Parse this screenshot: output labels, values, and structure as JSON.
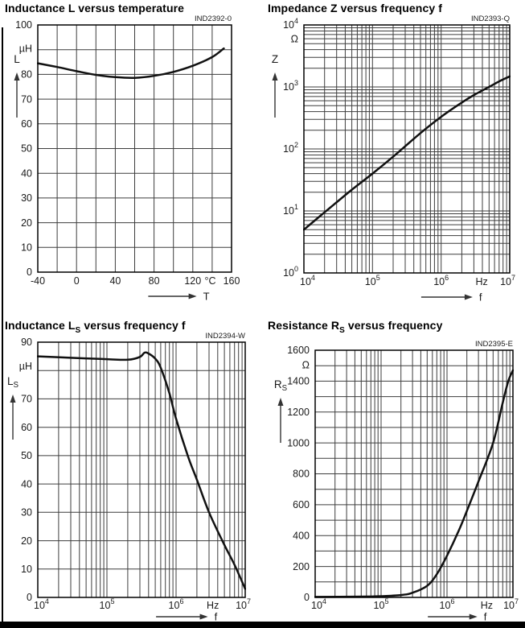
{
  "page": {
    "background": "#ffffff",
    "rule_color": "#000000"
  },
  "colors": {
    "grid": "#3d3d3d",
    "border": "#000000",
    "curve": "#111111",
    "arrow": "#333333",
    "text": "#1a1a1a"
  },
  "chart_data": [
    {
      "key": "l_vs_t",
      "type": "line",
      "title_parts": [
        {
          "text": "Inductance L versus temperature"
        }
      ],
      "plot_id": "IND2392-0",
      "x_axis": {
        "scale": "linear",
        "min": -40,
        "max": 160,
        "grid_step": 20,
        "arrow_label": "T",
        "ticks": [
          {
            "value": -40,
            "parts": [
              {
                "text": "-40"
              }
            ]
          },
          {
            "value": 0,
            "parts": [
              {
                "text": "0"
              }
            ]
          },
          {
            "value": 40,
            "parts": [
              {
                "text": "40"
              }
            ]
          },
          {
            "value": 80,
            "parts": [
              {
                "text": "80"
              }
            ]
          },
          {
            "value": 120,
            "parts": [
              {
                "text": "120"
              }
            ]
          },
          {
            "value": 138,
            "parts": [
              {
                "text": "°C"
              }
            ]
          },
          {
            "value": 160,
            "parts": [
              {
                "text": "160"
              }
            ]
          }
        ]
      },
      "y_axis": {
        "scale": "linear",
        "min": 0,
        "max": 100,
        "grid_step": 10,
        "quantity_parts": [
          {
            "text": "L"
          }
        ],
        "ticks": [
          {
            "value": 100,
            "parts": [
              {
                "text": "100"
              }
            ]
          },
          {
            "value": 90.5,
            "parts": [
              {
                "text": "µH"
              }
            ]
          },
          {
            "value": 80,
            "parts": [
              {
                "text": "80"
              }
            ]
          },
          {
            "value": 70,
            "parts": [
              {
                "text": "70"
              }
            ]
          },
          {
            "value": 60,
            "parts": [
              {
                "text": "60"
              }
            ]
          },
          {
            "value": 50,
            "parts": [
              {
                "text": "50"
              }
            ]
          },
          {
            "value": 40,
            "parts": [
              {
                "text": "40"
              }
            ]
          },
          {
            "value": 30,
            "parts": [
              {
                "text": "30"
              }
            ]
          },
          {
            "value": 20,
            "parts": [
              {
                "text": "20"
              }
            ]
          },
          {
            "value": 10,
            "parts": [
              {
                "text": "10"
              }
            ]
          },
          {
            "value": 0,
            "parts": [
              {
                "text": "0"
              }
            ]
          }
        ]
      },
      "series": [
        {
          "name": "L",
          "x": [
            -40,
            -20,
            0,
            20,
            40,
            60,
            80,
            100,
            120,
            140,
            152
          ],
          "y": [
            84.5,
            83,
            81.3,
            79.8,
            78.9,
            78.6,
            79.4,
            81,
            83.5,
            87,
            90.5
          ]
        }
      ]
    },
    {
      "key": "z_vs_f",
      "type": "line",
      "title_parts": [
        {
          "text": "Impedance Z versus frequency f"
        }
      ],
      "plot_id": "IND2393-Q",
      "x_axis": {
        "scale": "log",
        "min": 10000,
        "max": 10000000,
        "arrow_label": "f",
        "ticks": [
          {
            "value": 10000,
            "parts": [
              {
                "text": "10"
              },
              {
                "text": "4",
                "sup": true
              }
            ]
          },
          {
            "value": 100000,
            "parts": [
              {
                "text": "10"
              },
              {
                "text": "5",
                "sup": true
              }
            ]
          },
          {
            "value": 1000000,
            "parts": [
              {
                "text": "10"
              },
              {
                "text": "6",
                "sup": true
              }
            ]
          },
          {
            "value": 3900000,
            "parts": [
              {
                "text": "Hz"
              }
            ]
          },
          {
            "value": 10000000,
            "parts": [
              {
                "text": "10"
              },
              {
                "text": "7",
                "sup": true
              }
            ]
          }
        ]
      },
      "y_axis": {
        "scale": "log",
        "min": 1,
        "max": 10000,
        "quantity_parts": [
          {
            "text": "Z"
          }
        ],
        "ticks": [
          {
            "value": 10000,
            "parts": [
              {
                "text": "10"
              },
              {
                "text": "4",
                "sup": true
              }
            ]
          },
          {
            "value": 6000,
            "parts": [
              {
                "text": "Ω"
              }
            ]
          },
          {
            "value": 1000,
            "parts": [
              {
                "text": "10"
              },
              {
                "text": "3",
                "sup": true
              }
            ]
          },
          {
            "value": 100,
            "parts": [
              {
                "text": "10"
              },
              {
                "text": "2",
                "sup": true
              }
            ]
          },
          {
            "value": 10,
            "parts": [
              {
                "text": "10"
              },
              {
                "text": "1",
                "sup": true
              }
            ]
          },
          {
            "value": 1,
            "parts": [
              {
                "text": "10"
              },
              {
                "text": "0",
                "sup": true
              }
            ]
          }
        ]
      },
      "series": [
        {
          "name": "Z",
          "x": [
            10000,
            20000,
            50000,
            100000,
            200000,
            500000,
            1000000,
            2000000,
            3000000,
            5000000,
            7000000,
            10000000
          ],
          "y": [
            5,
            9.5,
            22,
            40,
            75,
            180,
            330,
            560,
            740,
            1000,
            1230,
            1480
          ]
        }
      ]
    },
    {
      "key": "ls_vs_f",
      "type": "line",
      "title_parts": [
        {
          "text": "Inductance L"
        },
        {
          "text": "S",
          "sub": true
        },
        {
          "text": " versus frequency f"
        }
      ],
      "plot_id": "IND2394-W",
      "x_axis": {
        "scale": "log",
        "min": 10000,
        "max": 10000000,
        "arrow_label": "f",
        "ticks": [
          {
            "value": 10000,
            "parts": [
              {
                "text": "10"
              },
              {
                "text": "4",
                "sup": true
              }
            ]
          },
          {
            "value": 100000,
            "parts": [
              {
                "text": "10"
              },
              {
                "text": "5",
                "sup": true
              }
            ]
          },
          {
            "value": 1000000,
            "parts": [
              {
                "text": "10"
              },
              {
                "text": "6",
                "sup": true
              }
            ]
          },
          {
            "value": 3400000,
            "parts": [
              {
                "text": "Hz"
              }
            ]
          },
          {
            "value": 10000000,
            "parts": [
              {
                "text": "10"
              },
              {
                "text": "7",
                "sup": true
              }
            ]
          }
        ]
      },
      "y_axis": {
        "scale": "linear",
        "min": 0,
        "max": 90,
        "grid_step": 10,
        "quantity_parts": [
          {
            "text": "L"
          },
          {
            "text": "S",
            "sub": true
          }
        ],
        "ticks": [
          {
            "value": 90,
            "parts": [
              {
                "text": "90"
              }
            ]
          },
          {
            "value": 81.5,
            "parts": [
              {
                "text": "µH"
              }
            ]
          },
          {
            "value": 70,
            "parts": [
              {
                "text": "70"
              }
            ]
          },
          {
            "value": 60,
            "parts": [
              {
                "text": "60"
              }
            ]
          },
          {
            "value": 50,
            "parts": [
              {
                "text": "50"
              }
            ]
          },
          {
            "value": 40,
            "parts": [
              {
                "text": "40"
              }
            ]
          },
          {
            "value": 30,
            "parts": [
              {
                "text": "30"
              }
            ]
          },
          {
            "value": 20,
            "parts": [
              {
                "text": "20"
              }
            ]
          },
          {
            "value": 10,
            "parts": [
              {
                "text": "10"
              }
            ]
          },
          {
            "value": 0,
            "parts": [
              {
                "text": "0"
              }
            ]
          }
        ]
      },
      "series": [
        {
          "name": "LS",
          "x": [
            10000,
            30000,
            100000,
            200000,
            300000,
            350000,
            400000,
            500000,
            600000,
            800000,
            1000000,
            1500000,
            2000000,
            3000000,
            5000000,
            7000000,
            10000000
          ],
          "y": [
            85,
            84.5,
            84,
            83.8,
            84.8,
            86.3,
            86,
            84.2,
            81,
            72,
            63,
            49.5,
            41.5,
            30,
            18.5,
            11.5,
            3
          ]
        }
      ]
    },
    {
      "key": "rs_vs_f",
      "type": "line",
      "title_parts": [
        {
          "text": "Resistance R"
        },
        {
          "text": "S",
          "sub": true
        },
        {
          "text": " versus frequency"
        }
      ],
      "plot_id": "IND2395-E",
      "x_axis": {
        "scale": "log",
        "min": 10000,
        "max": 10000000,
        "arrow_label": "f",
        "ticks": [
          {
            "value": 10000,
            "parts": [
              {
                "text": "10"
              },
              {
                "text": "4",
                "sup": true
              }
            ]
          },
          {
            "value": 100000,
            "parts": [
              {
                "text": "10"
              },
              {
                "text": "5",
                "sup": true
              }
            ]
          },
          {
            "value": 1000000,
            "parts": [
              {
                "text": "10"
              },
              {
                "text": "6",
                "sup": true
              }
            ]
          },
          {
            "value": 4000000,
            "parts": [
              {
                "text": "Hz"
              }
            ]
          },
          {
            "value": 10000000,
            "parts": [
              {
                "text": "10"
              },
              {
                "text": "7",
                "sup": true
              }
            ]
          }
        ]
      },
      "y_axis": {
        "scale": "linear",
        "min": 0,
        "max": 1600,
        "grid_step": 100,
        "quantity_parts": [
          {
            "text": "R"
          },
          {
            "text": "S",
            "sub": true
          }
        ],
        "ticks": [
          {
            "value": 1600,
            "parts": [
              {
                "text": "1600"
              }
            ]
          },
          {
            "value": 1505,
            "parts": [
              {
                "text": "Ω"
              }
            ]
          },
          {
            "value": 1400,
            "parts": [
              {
                "text": "1400"
              }
            ]
          },
          {
            "value": 1200,
            "parts": [
              {
                "text": "1200"
              }
            ]
          },
          {
            "value": 1000,
            "parts": [
              {
                "text": "1000"
              }
            ]
          },
          {
            "value": 800,
            "parts": [
              {
                "text": "800"
              }
            ]
          },
          {
            "value": 600,
            "parts": [
              {
                "text": "600"
              }
            ]
          },
          {
            "value": 400,
            "parts": [
              {
                "text": "400"
              }
            ]
          },
          {
            "value": 200,
            "parts": [
              {
                "text": "200"
              }
            ]
          },
          {
            "value": 0,
            "parts": [
              {
                "text": "0"
              }
            ]
          }
        ]
      },
      "series": [
        {
          "name": "RS",
          "x": [
            10000,
            50000,
            100000,
            200000,
            300000,
            500000,
            700000,
            1000000,
            1500000,
            2000000,
            3000000,
            5000000,
            7000000,
            8500000,
            10000000
          ],
          "y": [
            3,
            5,
            8,
            15,
            30,
            75,
            150,
            270,
            430,
            560,
            750,
            1000,
            1260,
            1400,
            1470
          ]
        }
      ]
    }
  ]
}
